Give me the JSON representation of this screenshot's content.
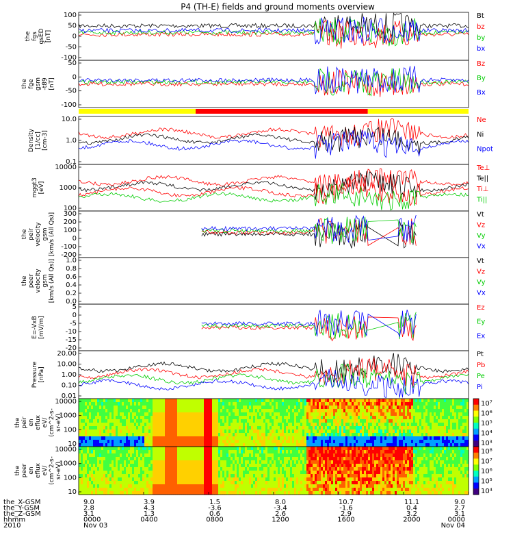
{
  "title": "P4 (TH-E) fields and ground moments overview",
  "chart_data": {
    "type": "line",
    "x_range_hours": [
      0,
      24
    ],
    "ephemeris_rows": [
      {
        "label": "the_X-GSM",
        "values": [
          "9.0",
          "3.9",
          "1.5",
          "8.0",
          "10.7",
          "11.1",
          "9.0"
        ]
      },
      {
        "label": "the_Y-GSM",
        "values": [
          "2.8",
          "4.3",
          "-3.6",
          "-3.4",
          "-1.6",
          "0.4",
          "2.7"
        ]
      },
      {
        "label": "the_Z-GSM",
        "values": [
          "3.1",
          "1.3",
          "0.6",
          "2.6",
          "2.9",
          "3.2",
          "3.1"
        ]
      },
      {
        "label": "hhmm",
        "values": [
          "0000",
          "0400",
          "0800",
          "1200",
          "1600",
          "2000",
          "0000"
        ]
      },
      {
        "label": "2010",
        "values": [
          "Nov 03",
          "",
          "",
          "",
          "",
          "",
          "Nov 04"
        ]
      }
    ],
    "panels": [
      {
        "id": "fgs",
        "ylabel": [
          "the",
          "fgs",
          "gsED",
          "[nT]"
        ],
        "ylim": [
          -100,
          100
        ],
        "ticks": [
          "100",
          "50",
          "0",
          "-50",
          "-100"
        ],
        "series": [
          {
            "name": "Bt",
            "color": "#000000"
          },
          {
            "name": "bz",
            "color": "#ff0000"
          },
          {
            "name": "by",
            "color": "#00cc00"
          },
          {
            "name": "bx",
            "color": "#0000ff"
          }
        ]
      },
      {
        "id": "fge",
        "ylabel": [
          "the",
          "fge",
          "gsm",
          "-t89",
          "[nT]"
        ],
        "ylim": [
          -120,
          60
        ],
        "ticks": [
          "50",
          "0",
          "-50",
          "-100"
        ],
        "series": [
          {
            "name": "Bz",
            "color": "#ff0000"
          },
          {
            "name": "By",
            "color": "#00cc00"
          },
          {
            "name": "Bx",
            "color": "#0000ff"
          }
        ]
      },
      {
        "id": "density",
        "ylabel": [
          "Density",
          "[1/cc]",
          "[cm-3]"
        ],
        "log": true,
        "ticks": [
          "10.0",
          "1.0",
          "0.1"
        ],
        "series": [
          {
            "name": "Ne",
            "color": "#ff0000"
          },
          {
            "name": "Ni",
            "color": "#000000"
          },
          {
            "name": "Npot",
            "color": "#0000ff"
          }
        ]
      },
      {
        "id": "temp",
        "ylabel": [
          "mggt3",
          "[eV]"
        ],
        "log": true,
        "ticks": [
          "10000",
          "1000",
          "100"
        ],
        "series": [
          {
            "name": "Te⊥",
            "color": "#ff0000"
          },
          {
            "name": "Te||",
            "color": "#000000"
          },
          {
            "name": "Ti⊥",
            "color": "#ff0000"
          },
          {
            "name": "Ti||",
            "color": "#00cc00"
          }
        ]
      },
      {
        "id": "peir",
        "ylabel": [
          "the",
          "peir",
          "velocity",
          "gsm",
          "[km/s (All Qs)]"
        ],
        "ylim": [
          -200,
          300
        ],
        "ticks": [
          "300",
          "200",
          "100",
          "0",
          "-100",
          "-200"
        ],
        "series": [
          {
            "name": "Vt",
            "color": "#000000"
          },
          {
            "name": "Vz",
            "color": "#ff0000"
          },
          {
            "name": "Vy",
            "color": "#00cc00"
          },
          {
            "name": "Vx",
            "color": "#0000ff"
          }
        ]
      },
      {
        "id": "peer",
        "ylabel": [
          "the",
          "peer",
          "velocity",
          "gsm",
          "[km/s (All Qs)]"
        ],
        "ylim": [
          0,
          1
        ],
        "ticks": [
          "1.0",
          "0.8",
          "0.6",
          "0.4",
          "0.2",
          "0.0"
        ],
        "series": [
          {
            "name": "Vt",
            "color": "#000000"
          },
          {
            "name": "Vz",
            "color": "#ff0000"
          },
          {
            "name": "Vy",
            "color": "#00cc00"
          },
          {
            "name": "Vx",
            "color": "#0000ff"
          }
        ]
      },
      {
        "id": "efield",
        "ylabel": [
          "E=-VxB",
          "[mV/m]"
        ],
        "ylim": [
          -20,
          5
        ],
        "ticks": [
          "5",
          "0",
          "-5",
          "-10",
          "-15",
          "-20"
        ],
        "series": [
          {
            "name": "Ez",
            "color": "#ff0000"
          },
          {
            "name": "Ey",
            "color": "#00cc00"
          },
          {
            "name": "Ex",
            "color": "#0000ff"
          }
        ]
      },
      {
        "id": "pressure",
        "ylabel": [
          "Pressure",
          "[nPa]"
        ],
        "log": true,
        "ticks": [
          "20.00",
          "10.00",
          "1.00",
          "0.10",
          "0.01"
        ],
        "series": [
          {
            "name": "Pt",
            "color": "#000000"
          },
          {
            "name": "Pb",
            "color": "#ff0000"
          },
          {
            "name": "Pe",
            "color": "#00cc00"
          },
          {
            "name": "Pi",
            "color": "#0000ff"
          }
        ]
      },
      {
        "id": "peir_spec",
        "ylabel": [
          "the",
          "peir",
          "en",
          "eflux",
          "eV/",
          "(cm^2-s-",
          "sr-eV)"
        ],
        "log": true,
        "ticks": [
          "10000",
          "1000",
          "100",
          "10"
        ],
        "colorbar": [
          "10⁷",
          "10⁶",
          "10⁵",
          "10⁴",
          "10³"
        ]
      },
      {
        "id": "peer_spec",
        "ylabel": [
          "the",
          "peer",
          "en",
          "eflux",
          "eV/",
          "(cm^2-s-",
          "sr-eV)"
        ],
        "log": true,
        "ticks": [
          "10000",
          "1000",
          "100",
          "10"
        ],
        "colorbar": [
          "10⁸",
          "10⁷",
          "10⁶",
          "10⁵",
          "10⁴"
        ]
      }
    ],
    "mode_bar": [
      {
        "from": 0,
        "to": 7.2,
        "color": "#ffff00"
      },
      {
        "from": 7.2,
        "to": 17.8,
        "color": "#ff0000"
      },
      {
        "from": 17.8,
        "to": 24,
        "color": "#ffff00"
      }
    ]
  }
}
